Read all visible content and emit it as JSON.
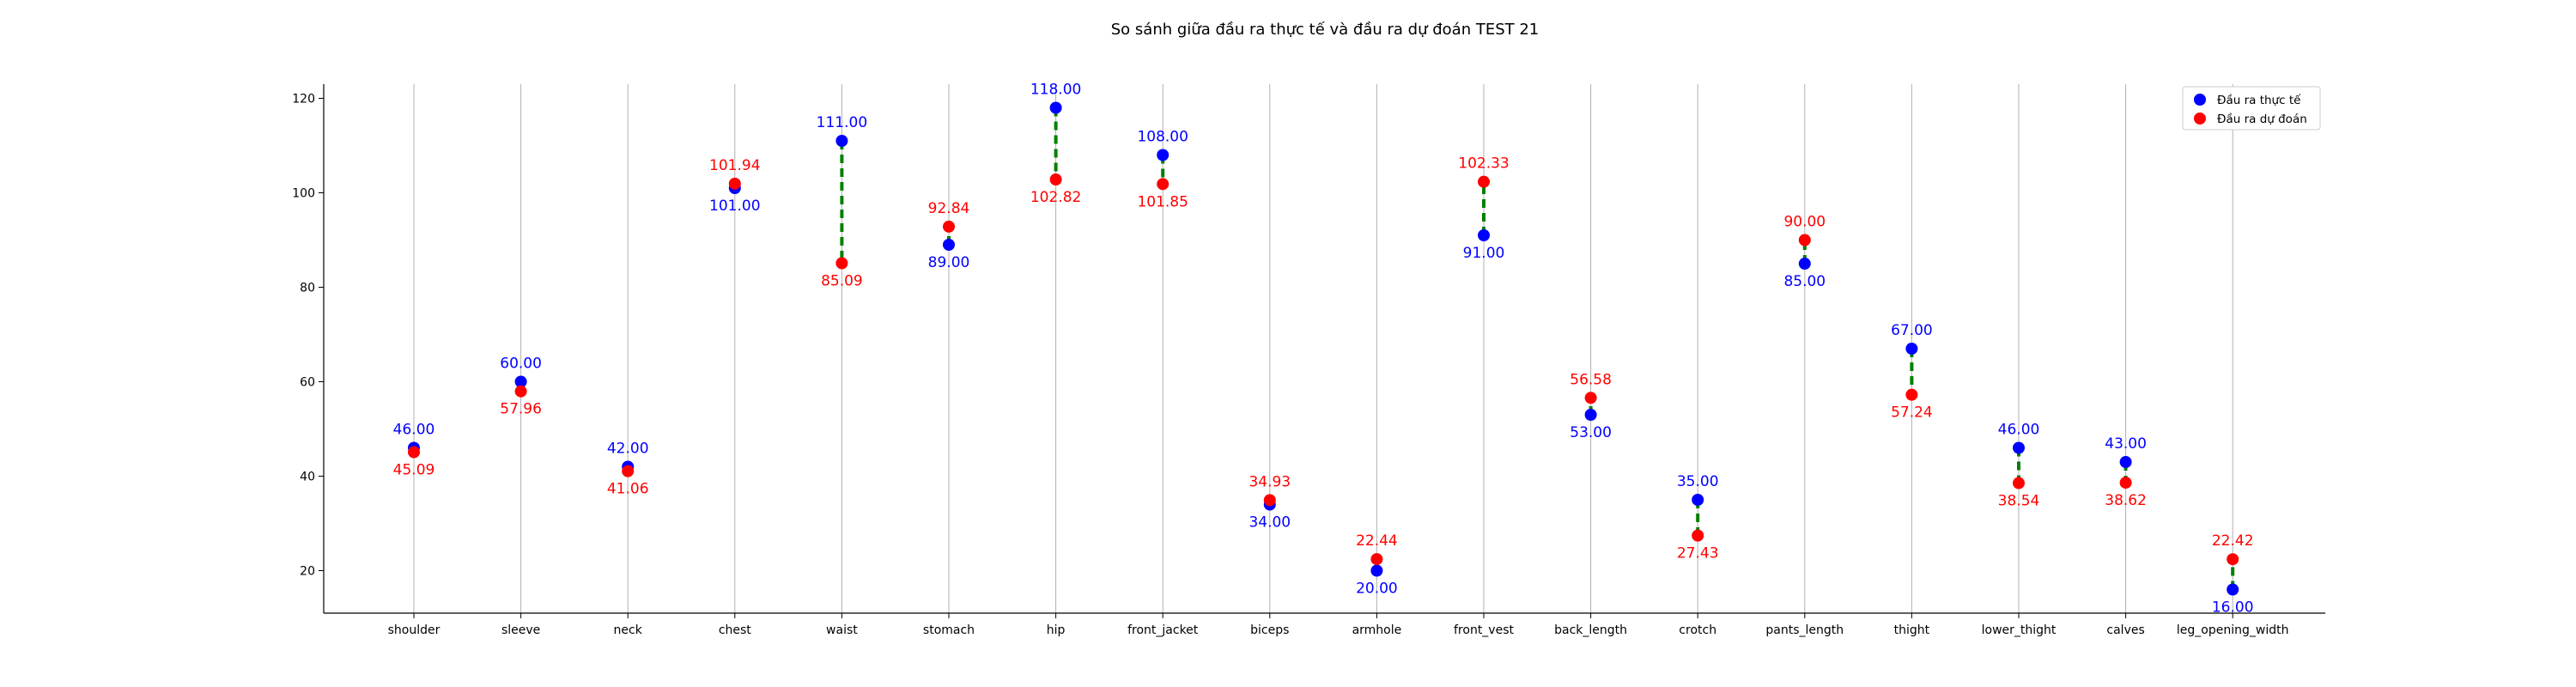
{
  "chart_data": {
    "type": "scatter",
    "title": "So sánh giữa đầu ra thực tế và đầu ra dự đoán TEST 21",
    "xlabel": "",
    "ylabel": "",
    "ylim": [
      11,
      123
    ],
    "yticks": [
      20,
      40,
      60,
      80,
      100,
      120
    ],
    "grid": "vertical",
    "legend_position": "top-right",
    "categories": [
      "shoulder",
      "sleeve",
      "neck",
      "chest",
      "waist",
      "stomach",
      "hip",
      "front_jacket",
      "biceps",
      "armhole",
      "front_vest",
      "back_length",
      "crotch",
      "pants_length",
      "thight",
      "lower_thight",
      "calves",
      "leg_opening_width"
    ],
    "series": [
      {
        "name": "Đầu ra thực tế",
        "color": "#0000ff",
        "values": [
          46.0,
          60.0,
          42.0,
          101.0,
          111.0,
          89.0,
          118.0,
          108.0,
          34.0,
          20.0,
          91.0,
          53.0,
          35.0,
          85.0,
          67.0,
          46.0,
          43.0,
          16.0
        ],
        "labels": [
          "46.00",
          "60.00",
          "42.00",
          "101.00",
          "111.00",
          "89.00",
          "118.00",
          "108.00",
          "34.00",
          "20.00",
          "91.00",
          "53.00",
          "35.00",
          "85.00",
          "67.00",
          "46.00",
          "43.00",
          "16.00"
        ]
      },
      {
        "name": "Đầu ra dự đoán",
        "color": "#ff0000",
        "values": [
          45.09,
          57.96,
          41.06,
          101.94,
          85.09,
          92.84,
          102.82,
          101.85,
          34.93,
          22.44,
          102.33,
          56.58,
          27.43,
          90.0,
          57.24,
          38.54,
          38.62,
          22.42
        ],
        "labels": [
          "45.09",
          "57.96",
          "41.06",
          "101.94",
          "85.09",
          "92.84",
          "102.82",
          "101.85",
          "34.93",
          "22.44",
          "102.33",
          "56.58",
          "27.43",
          "90.00",
          "57.24",
          "38.54",
          "38.62",
          "22.42"
        ]
      }
    ],
    "connector_color": "#008000"
  }
}
